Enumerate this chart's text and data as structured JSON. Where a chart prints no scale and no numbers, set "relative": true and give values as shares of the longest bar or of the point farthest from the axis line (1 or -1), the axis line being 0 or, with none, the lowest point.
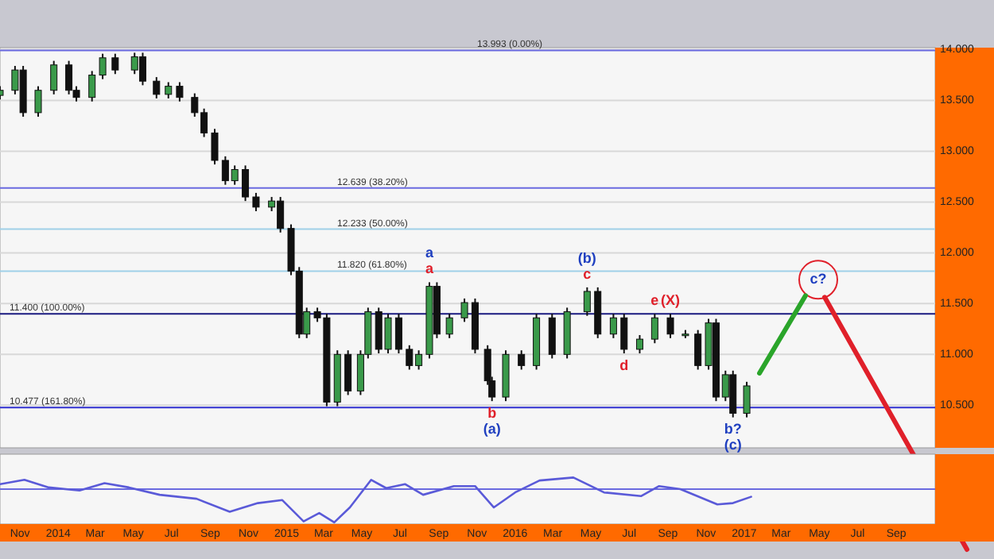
{
  "chart_data": [
    {
      "type": "candlestick",
      "tick_labels": "y",
      "grid": "y",
      "x": [
        "2013-09-30",
        "2013-10-24",
        "2013-11-06",
        "2013-11-30",
        "2013-12-25",
        "2014-01-18",
        "2014-01-30",
        "2014-02-24",
        "2014-03-13",
        "2014-04-02",
        "2014-05-03",
        "2014-05-16",
        "2014-06-07",
        "2014-06-26",
        "2014-07-14",
        "2014-08-07",
        "2014-08-22",
        "2014-09-08",
        "2014-09-25",
        "2014-10-10",
        "2014-10-27",
        "2014-11-13",
        "2014-12-08",
        "2014-12-22",
        "2015-01-08",
        "2015-01-21",
        "2015-02-02",
        "2015-02-19",
        "2015-03-06",
        "2015-03-23",
        "2015-04-09",
        "2015-04-29",
        "2015-05-11",
        "2015-05-28",
        "2015-06-12",
        "2015-06-29",
        "2015-07-16",
        "2015-07-31",
        "2015-08-17",
        "2015-08-29",
        "2015-09-18",
        "2015-10-12",
        "2015-10-29",
        "2015-11-18",
        "2015-11-25",
        "2015-12-17",
        "2016-01-11",
        "2016-02-04",
        "2016-02-29",
        "2016-03-24",
        "2016-04-25",
        "2016-05-12",
        "2016-06-06",
        "2016-06-23",
        "2016-07-18",
        "2016-08-11",
        "2016-09-05",
        "2016-09-29",
        "2016-10-19",
        "2016-11-05",
        "2016-11-17",
        "2016-12-02",
        "2016-12-14",
        "2017-01-05"
      ],
      "ohlc": [
        [
          13.55,
          13.64,
          13.51,
          13.6
        ],
        [
          13.6,
          13.84,
          13.56,
          13.8
        ],
        [
          13.8,
          13.84,
          13.34,
          13.38
        ],
        [
          13.38,
          13.64,
          13.34,
          13.6
        ],
        [
          13.6,
          13.89,
          13.56,
          13.85
        ],
        [
          13.85,
          13.89,
          13.56,
          13.6
        ],
        [
          13.6,
          13.64,
          13.49,
          13.53
        ],
        [
          13.53,
          13.79,
          13.49,
          13.75
        ],
        [
          13.75,
          13.96,
          13.71,
          13.92
        ],
        [
          13.92,
          13.96,
          13.76,
          13.8
        ],
        [
          13.8,
          13.97,
          13.76,
          13.93
        ],
        [
          13.93,
          13.97,
          13.65,
          13.69
        ],
        [
          13.69,
          13.73,
          13.52,
          13.56
        ],
        [
          13.56,
          13.68,
          13.52,
          13.64
        ],
        [
          13.64,
          13.68,
          13.49,
          13.53
        ],
        [
          13.53,
          13.57,
          13.34,
          13.38
        ],
        [
          13.38,
          13.42,
          13.14,
          13.18
        ],
        [
          13.18,
          13.22,
          12.87,
          12.91
        ],
        [
          12.91,
          12.95,
          12.67,
          12.71
        ],
        [
          12.71,
          12.86,
          12.67,
          12.82
        ],
        [
          12.82,
          12.86,
          12.51,
          12.55
        ],
        [
          12.55,
          12.59,
          12.41,
          12.45
        ],
        [
          12.45,
          12.55,
          12.41,
          12.51
        ],
        [
          12.51,
          12.55,
          12.2,
          12.24
        ],
        [
          12.24,
          12.28,
          11.78,
          11.82
        ],
        [
          11.82,
          11.86,
          11.16,
          11.2
        ],
        [
          11.2,
          11.46,
          11.16,
          11.42
        ],
        [
          11.42,
          11.46,
          11.32,
          11.36
        ],
        [
          11.36,
          11.4,
          10.49,
          10.53
        ],
        [
          10.53,
          11.04,
          10.49,
          11.0
        ],
        [
          11.0,
          11.04,
          10.6,
          10.64
        ],
        [
          10.64,
          11.04,
          10.6,
          11.0
        ],
        [
          11.0,
          11.46,
          10.96,
          11.42
        ],
        [
          11.42,
          11.46,
          11.01,
          11.05
        ],
        [
          11.05,
          11.4,
          11.01,
          11.36
        ],
        [
          11.36,
          11.4,
          11.01,
          11.05
        ],
        [
          11.05,
          11.09,
          10.85,
          10.89
        ],
        [
          10.89,
          11.04,
          10.85,
          11.0
        ],
        [
          11.0,
          11.71,
          10.96,
          11.67
        ],
        [
          11.67,
          11.71,
          11.16,
          11.2
        ],
        [
          11.2,
          11.4,
          11.16,
          11.36
        ],
        [
          11.36,
          11.55,
          11.32,
          11.51
        ],
        [
          11.51,
          11.55,
          11.01,
          11.05
        ],
        [
          11.05,
          11.09,
          10.7,
          10.74
        ],
        [
          10.74,
          10.78,
          10.54,
          10.58
        ],
        [
          10.58,
          11.04,
          10.54,
          11.0
        ],
        [
          11.0,
          11.04,
          10.85,
          10.89
        ],
        [
          10.89,
          11.4,
          10.85,
          11.36
        ],
        [
          11.36,
          11.4,
          10.96,
          11.0
        ],
        [
          11.0,
          11.46,
          10.96,
          11.42
        ],
        [
          11.42,
          11.66,
          11.38,
          11.62
        ],
        [
          11.62,
          11.66,
          11.16,
          11.2
        ],
        [
          11.2,
          11.4,
          11.16,
          11.36
        ],
        [
          11.36,
          11.4,
          11.01,
          11.05
        ],
        [
          11.05,
          11.19,
          11.01,
          11.15
        ],
        [
          11.15,
          11.4,
          11.11,
          11.36
        ],
        [
          11.36,
          11.4,
          11.16,
          11.2
        ],
        [
          11.2,
          11.24,
          11.16,
          11.2
        ],
        [
          11.2,
          11.24,
          10.85,
          10.89
        ],
        [
          10.89,
          11.35,
          10.85,
          11.31
        ],
        [
          11.31,
          11.35,
          10.54,
          10.58
        ],
        [
          10.58,
          10.84,
          10.54,
          10.8
        ],
        [
          10.8,
          10.84,
          10.38,
          10.42
        ],
        [
          10.42,
          10.73,
          10.38,
          10.69
        ]
      ],
      "xlim": [
        "2013-09-30",
        "2017-11-02"
      ],
      "ylim": [
        10.08,
        14.02
      ],
      "yticks": [
        {
          "value": 10.5,
          "label": "10.500"
        },
        {
          "value": 11,
          "label": "11.000"
        },
        {
          "value": 11.5,
          "label": "11.500"
        },
        {
          "value": 12,
          "label": "12.000"
        },
        {
          "value": 12.5,
          "label": "12.500"
        },
        {
          "value": 13,
          "label": "13.000"
        },
        {
          "value": 13.5,
          "label": "13.500"
        },
        {
          "value": 14,
          "label": "14.000"
        }
      ],
      "ref_lines": [
        {
          "axis": "y",
          "value": 13.993,
          "label": "13.993 (0.00%)",
          "color": "#6a6ae0"
        },
        {
          "axis": "y",
          "value": 12.639,
          "label": "12.639 (38.20%)",
          "color": "#6a6ae0"
        },
        {
          "axis": "y",
          "value": 12.233,
          "label": "12.233 (50.00%)",
          "color": "#9fd0e8"
        },
        {
          "axis": "y",
          "value": 11.82,
          "label": "11.820 (61.80%)",
          "color": "#9fd0e8"
        },
        {
          "axis": "y",
          "value": 11.4,
          "label": "11.400 (100.00%)",
          "color": "#1a1a80"
        },
        {
          "axis": "y",
          "value": 10.477,
          "label": "10.477 (161.80%)",
          "color": "#3030d0"
        }
      ],
      "annotations": [
        {
          "text": "a",
          "x": "2015-08-17",
          "y": 11.71
        },
        {
          "text": "a",
          "x": "2015-08-17",
          "y": 11.71
        },
        {
          "text": "b",
          "x": "2015-11-25",
          "y": 10.54
        },
        {
          "text": "(a)",
          "x": "2015-11-25",
          "y": 10.54
        },
        {
          "text": "c",
          "x": "2016-04-25",
          "y": 11.66
        },
        {
          "text": "(b)",
          "x": "2016-04-25",
          "y": 11.66
        },
        {
          "text": "d",
          "x": "2016-06-23",
          "y": 11.01
        },
        {
          "text": "e",
          "x": "2016-08-11",
          "y": 11.4
        },
        {
          "text": "(X)",
          "x": "2016-09-05",
          "y": 11.4
        },
        {
          "text": "b?",
          "x": "2016-12-14",
          "y": 10.38
        },
        {
          "text": "(c)",
          "x": "2016-12-14",
          "y": 10.38
        },
        "c?"
      ]
    },
    {
      "type": "line",
      "relative": true,
      "tick_labels": "x",
      "color": "#5a5ad8",
      "ref_lines": [
        {
          "axis": "y",
          "value": 0,
          "color": "#6a6ae0"
        }
      ],
      "xlim": [
        "2013-09-30",
        "2017-11-02"
      ],
      "xticks": [
        {
          "value": "2013-11-01",
          "label": "Nov"
        },
        {
          "value": "2014-01-01",
          "label": "2014"
        },
        {
          "value": "2014-03-01",
          "label": "Mar"
        },
        {
          "value": "2014-05-01",
          "label": "May"
        },
        {
          "value": "2014-07-01",
          "label": "Jul"
        },
        {
          "value": "2014-09-01",
          "label": "Sep"
        },
        {
          "value": "2014-11-01",
          "label": "Nov"
        },
        {
          "value": "2015-01-01",
          "label": "2015"
        },
        {
          "value": "2015-03-01",
          "label": "Mar"
        },
        {
          "value": "2015-05-01",
          "label": "May"
        },
        {
          "value": "2015-07-01",
          "label": "Jul"
        },
        {
          "value": "2015-09-01",
          "label": "Sep"
        },
        {
          "value": "2015-11-01",
          "label": "Nov"
        },
        {
          "value": "2016-01-01",
          "label": "2016"
        },
        {
          "value": "2016-03-01",
          "label": "Mar"
        },
        {
          "value": "2016-05-01",
          "label": "May"
        },
        {
          "value": "2016-07-01",
          "label": "Jul"
        },
        {
          "value": "2016-09-01",
          "label": "Sep"
        },
        {
          "value": "2016-11-01",
          "label": "Nov"
        },
        {
          "value": "2017-01-01",
          "label": "2017"
        },
        {
          "value": "2017-03-01",
          "label": "Mar"
        },
        {
          "value": "2017-05-01",
          "label": "May"
        },
        {
          "value": "2017-07-01",
          "label": "Jul"
        },
        {
          "value": "2017-09-01",
          "label": "Sep"
        }
      ],
      "x": [
        "2013-09-30",
        "2013-11-08",
        "2013-12-17",
        "2014-02-04",
        "2014-03-16",
        "2014-04-24",
        "2014-06-12",
        "2014-08-10",
        "2014-10-02",
        "2014-11-16",
        "2014-12-25",
        "2015-01-28",
        "2015-02-22",
        "2015-03-18",
        "2015-04-12",
        "2015-05-16",
        "2015-06-09",
        "2015-07-09",
        "2015-08-07",
        "2015-09-25",
        "2015-10-29",
        "2015-11-28",
        "2016-01-01",
        "2016-02-09",
        "2016-04-03",
        "2016-05-22",
        "2016-07-20",
        "2016-08-18",
        "2016-09-21",
        "2016-11-19",
        "2016-12-14",
        "2017-01-12"
      ],
      "values": [
        0.15,
        0.28,
        0.05,
        -0.04,
        0.18,
        0.05,
        -0.17,
        -0.29,
        -0.68,
        -0.42,
        -0.33,
        -0.97,
        -0.72,
        -1,
        -0.55,
        0.28,
        0.03,
        0.15,
        -0.17,
        0.09,
        0.09,
        -0.55,
        -0.1,
        0.26,
        0.35,
        -0.1,
        -0.21,
        0.09,
        0,
        -0.46,
        -0.42,
        -0.23
      ]
    }
  ]
}
